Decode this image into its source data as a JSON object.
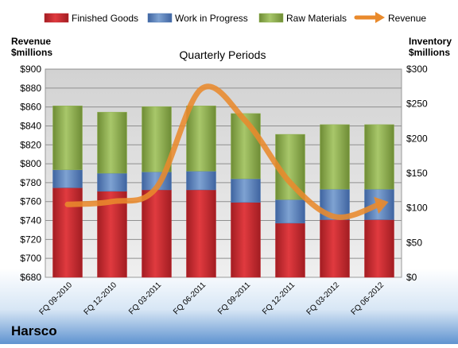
{
  "company": "Harsco",
  "colors": {
    "finished_goods": "#c0252b",
    "work_in_progress": "#4f79b3",
    "raw_materials": "#8fb14e",
    "revenue": "#e98a2c"
  },
  "chart_data": {
    "type": "bar",
    "stacked": true,
    "title": "Quarterly Periods",
    "categories": [
      "FQ 09-2010",
      "FQ 12-2010",
      "FQ 03-2011",
      "FQ 06-2011",
      "FQ 09-2011",
      "FQ 12-2011",
      "FQ 03-2012",
      "FQ 06-2012"
    ],
    "ylabel_left": "Revenue\n$millions",
    "ylabel_right": "Inventory\n$millions",
    "y_left": {
      "min": 680,
      "max": 900,
      "step": 20,
      "ticks": [
        "$680",
        "$700",
        "$720",
        "$740",
        "$760",
        "$780",
        "$800",
        "$820",
        "$840",
        "$860",
        "$880",
        "$900"
      ]
    },
    "y_right": {
      "min": 0,
      "max": 300,
      "step": 50,
      "ticks": [
        "$0",
        "$50",
        "$100",
        "$150",
        "$200",
        "$250",
        "$300"
      ]
    },
    "series": [
      {
        "name": "Finished Goods",
        "axis": "right",
        "kind": "bar",
        "values": [
          129,
          124,
          126,
          126,
          108,
          78,
          83,
          83
        ]
      },
      {
        "name": "Work in Progress",
        "axis": "right",
        "kind": "bar",
        "values": [
          26,
          26,
          26,
          27,
          34,
          34,
          44,
          44
        ]
      },
      {
        "name": "Raw Materials",
        "axis": "right",
        "kind": "bar",
        "values": [
          92,
          88,
          94,
          94,
          94,
          94,
          93,
          93
        ]
      },
      {
        "name": "Revenue",
        "axis": "left",
        "kind": "line",
        "smooth": true,
        "values": [
          757,
          760,
          775,
          879,
          845,
          780,
          744,
          757
        ]
      }
    ],
    "legend": [
      "Finished Goods",
      "Work in Progress",
      "Raw Materials",
      "Revenue"
    ],
    "legend_position": "top",
    "grid": true
  }
}
